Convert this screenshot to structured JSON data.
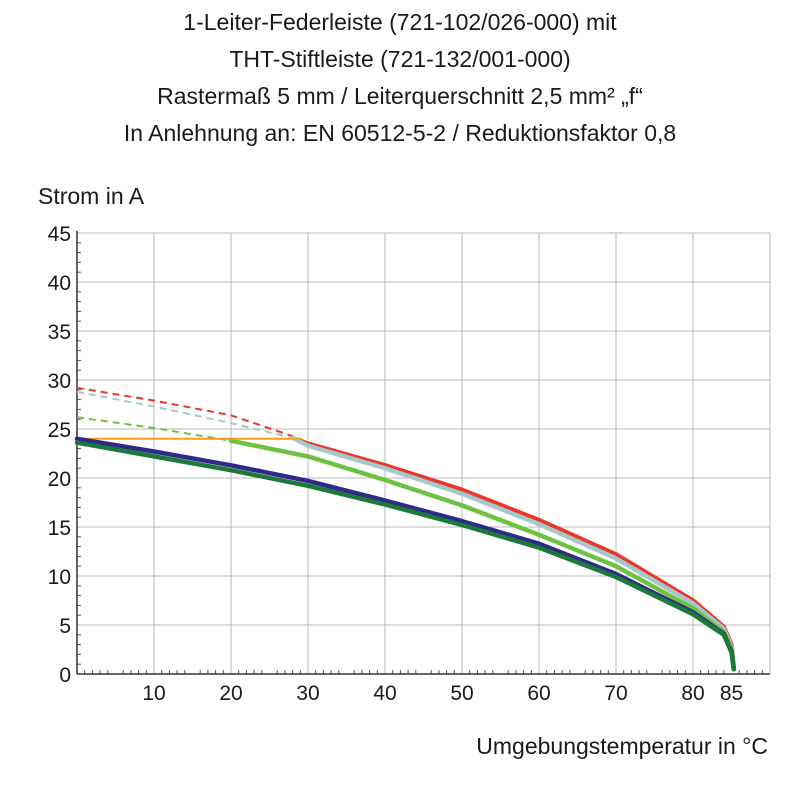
{
  "title_lines": [
    "1-Leiter-Federleiste (721-102/026-000) mit",
    "THT-Stiftleiste (721-132/001-000)",
    "Rastermaß 5 mm / Leiterquerschnitt 2,5 mm² „f“",
    "In Anlehnung an: EN 60512-5-2 / Reduktionsfaktor 0,8"
  ],
  "chart_data": {
    "type": "line",
    "ylabel": "Strom in A",
    "xlabel": "Umgebungstemperatur in °C",
    "xlim": [
      0,
      90
    ],
    "ylim": [
      0,
      45
    ],
    "x_ticks": [
      10,
      20,
      30,
      40,
      50,
      60,
      70,
      80,
      85
    ],
    "y_ticks": [
      0,
      5,
      10,
      15,
      20,
      25,
      30,
      35,
      40,
      45
    ],
    "grid": true,
    "series": [
      {
        "color": "#e8382b",
        "dashed_points": [
          [
            0,
            29.2
          ],
          [
            10,
            27.9
          ],
          [
            20,
            26.4
          ],
          [
            29,
            24.0
          ]
        ],
        "points": [
          [
            29,
            23.8
          ],
          [
            30,
            23.5
          ],
          [
            40,
            21.3
          ],
          [
            50,
            18.8
          ],
          [
            60,
            15.7
          ],
          [
            70,
            12.2
          ],
          [
            80,
            7.5
          ],
          [
            84,
            4.8
          ],
          [
            85,
            3.0
          ],
          [
            85.3,
            0.5
          ]
        ]
      },
      {
        "color": "#a8c7cc",
        "dashed_points": [
          [
            0,
            28.8
          ],
          [
            10,
            27.3
          ],
          [
            20,
            25.6
          ],
          [
            28,
            24.1
          ]
        ],
        "points": [
          [
            28,
            24.1
          ],
          [
            30,
            23.3
          ],
          [
            40,
            21.0
          ],
          [
            50,
            18.4
          ],
          [
            60,
            15.3
          ],
          [
            70,
            11.8
          ],
          [
            80,
            7.2
          ],
          [
            84,
            4.6
          ],
          [
            85,
            2.8
          ],
          [
            85.3,
            0.5
          ]
        ]
      },
      {
        "color": "#6fc142",
        "dashed_points": [
          [
            0,
            26.2
          ],
          [
            10,
            25.1
          ],
          [
            20,
            23.8
          ]
        ],
        "points": [
          [
            20,
            23.8
          ],
          [
            30,
            22.2
          ],
          [
            40,
            19.8
          ],
          [
            50,
            17.2
          ],
          [
            60,
            14.2
          ],
          [
            70,
            11.0
          ],
          [
            80,
            6.7
          ],
          [
            84,
            4.3
          ],
          [
            85,
            2.6
          ],
          [
            85.3,
            0.5
          ]
        ]
      },
      {
        "color": "#f6a01a",
        "dashed_points": [],
        "points": [
          [
            0,
            24.0
          ],
          [
            29,
            24.0
          ]
        ]
      },
      {
        "color": "#2f2a86",
        "dashed_points": [],
        "points": [
          [
            0,
            24.0
          ],
          [
            10,
            22.7
          ],
          [
            20,
            21.3
          ],
          [
            30,
            19.7
          ],
          [
            40,
            17.7
          ],
          [
            50,
            15.6
          ],
          [
            60,
            13.3
          ],
          [
            70,
            10.2
          ],
          [
            80,
            6.3
          ],
          [
            84,
            4.1
          ],
          [
            85,
            2.3
          ],
          [
            85.3,
            0.5
          ]
        ]
      },
      {
        "color": "#1b7a3a",
        "dashed_points": [],
        "points": [
          [
            0,
            23.6
          ],
          [
            10,
            22.2
          ],
          [
            20,
            20.8
          ],
          [
            30,
            19.2
          ],
          [
            40,
            17.3
          ],
          [
            50,
            15.2
          ],
          [
            60,
            12.9
          ],
          [
            70,
            9.9
          ],
          [
            80,
            6.1
          ],
          [
            84,
            4.0
          ],
          [
            85,
            2.2
          ],
          [
            85.3,
            0.5
          ]
        ]
      }
    ]
  }
}
